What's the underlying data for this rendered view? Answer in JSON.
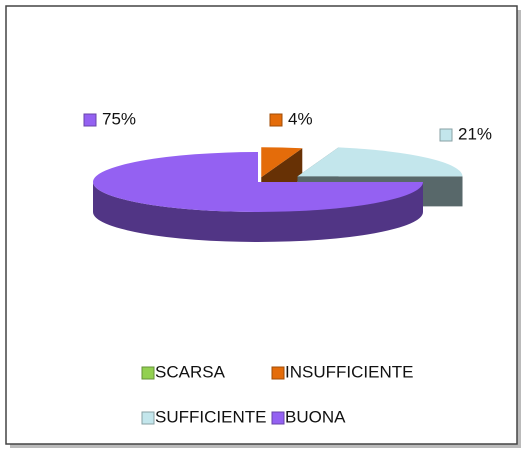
{
  "chart_data": {
    "type": "pie3d",
    "categories": [
      "SCARSA",
      "INSUFFICIENTE",
      "SUFFICIENTE",
      "BUONA"
    ],
    "values": [
      0,
      4,
      21,
      75
    ],
    "value_labels": [
      null,
      "4%",
      "21%",
      "75%"
    ],
    "colors": [
      "#92d050",
      "#e46c0a",
      "#c3e6ec",
      "#9461f2"
    ],
    "legend": "bottom"
  }
}
